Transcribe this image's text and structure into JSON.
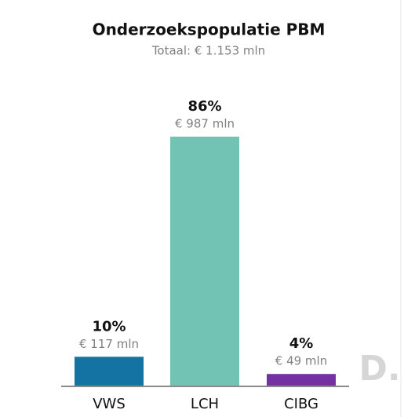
{
  "chart_data": {
    "type": "bar",
    "title": "Onderzoekspopulatie PBM",
    "subtitle": "Totaal: € 1.153 mln",
    "categories": [
      "VWS",
      "LCH",
      "CIBG"
    ],
    "values": [
      117,
      987,
      49
    ],
    "value_labels": [
      "€ 117 mln",
      "€ 987 mln",
      "€ 49 mln"
    ],
    "percent_labels": [
      "10%",
      "86%",
      "4%"
    ],
    "colors": [
      "#1573a3",
      "#73c3b4",
      "#7331a1"
    ],
    "logo": "D."
  }
}
